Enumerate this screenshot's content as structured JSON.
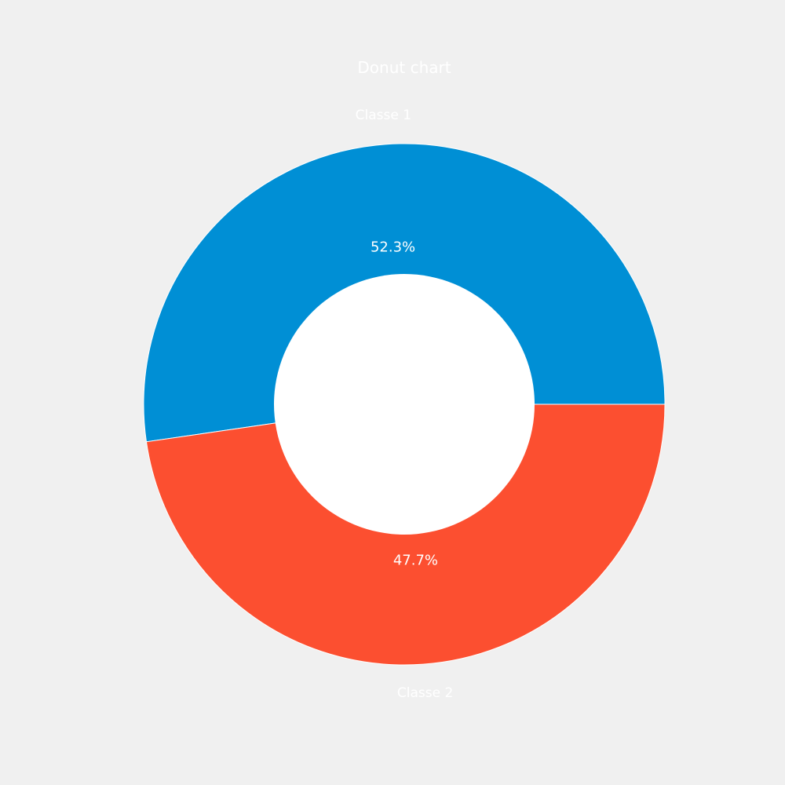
{
  "chart_data": {
    "type": "pie",
    "variant": "donut",
    "title": "Donut chart",
    "categories": [
      "Classe 1",
      "Classe 2"
    ],
    "values": [
      52.3,
      47.7
    ],
    "percent_labels": [
      "52.3%",
      "47.7%"
    ],
    "colors": [
      "#008fd5",
      "#fc4f30"
    ],
    "start_angle_deg": 0,
    "direction": "counterclockwise",
    "background_color": "#f0f0f0",
    "center_color": "#ffffff",
    "text_color": "#ffffff"
  }
}
